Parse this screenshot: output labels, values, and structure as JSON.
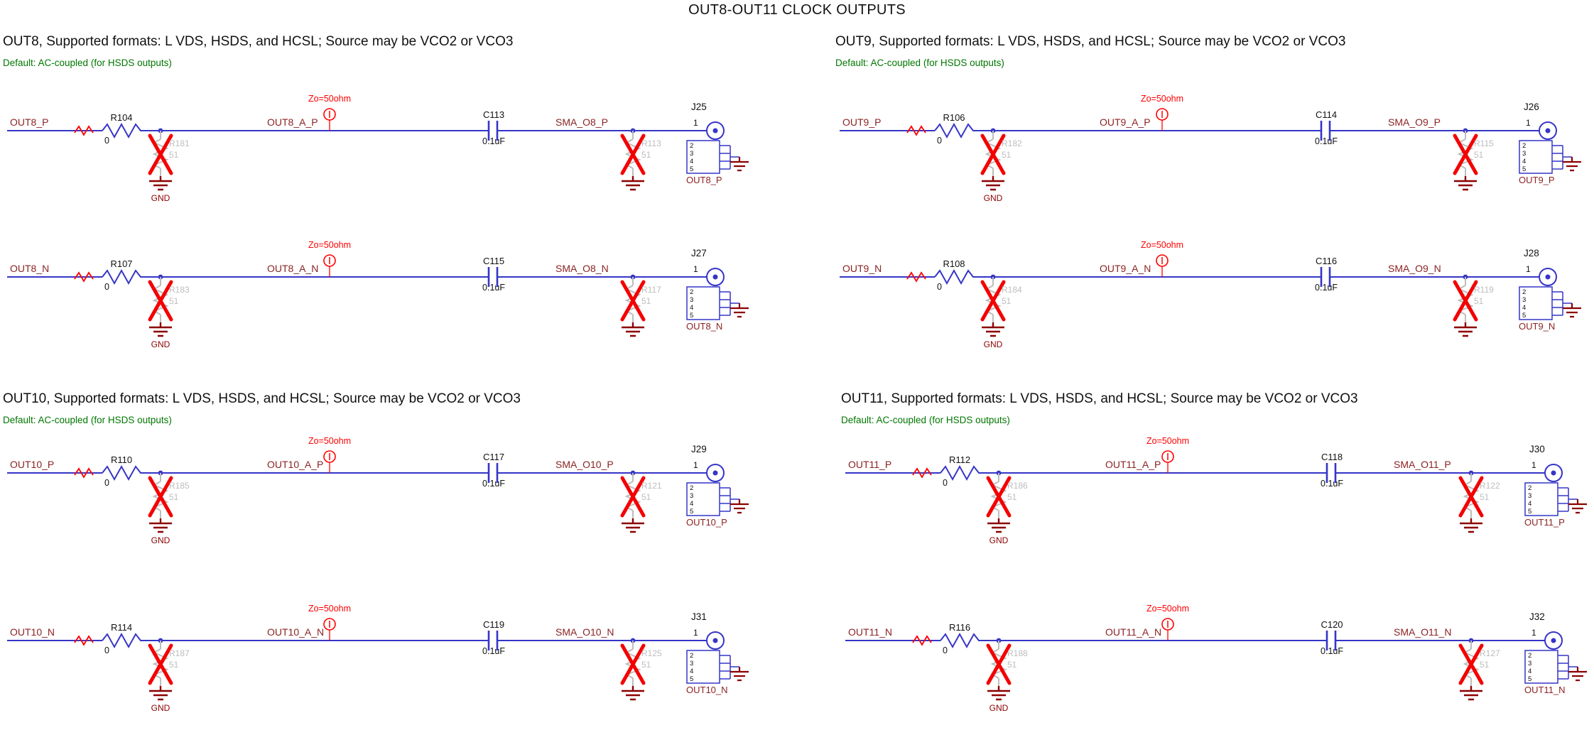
{
  "title": "OUT8-OUT11 CLOCK OUTPUTS",
  "labels": {
    "gnd": "GND",
    "zo": "Zo=50ohm"
  },
  "colors": {
    "wire": "#3535c8",
    "net_label": "#8b2323",
    "ground": "#8b0000",
    "dnp_gray": "#bdbdbd",
    "dnp_cross": "#f40000",
    "impedance": "#ff0000",
    "subtitle_green": "#007700",
    "text": "#111111"
  },
  "sections": [
    {
      "name": "OUT8",
      "title": "OUT8, Supported  formats: L VDS, HSDS, and HCSL; Source  may be VCO2 or VCO3",
      "subtitle": "Default:  AC-coupled (for HSDS outputs)",
      "channels": [
        {
          "input_net": "OUT8_P",
          "series": {
            "ref": "R104",
            "value": "0"
          },
          "shunt": {
            "ref": "R181",
            "value": "51"
          },
          "mid_net": "OUT8_A_P",
          "cap": {
            "ref": "C113",
            "value": "0.1uF"
          },
          "out_net": "SMA_O8_P",
          "sma_shunt": {
            "ref": "R113",
            "value": "51"
          },
          "connector": {
            "ref": "J25",
            "pin1": "1",
            "pins": [
              "2",
              "3",
              "4",
              "5"
            ],
            "net": "OUT8_P"
          }
        },
        {
          "input_net": "OUT8_N",
          "series": {
            "ref": "R107",
            "value": "0"
          },
          "shunt": {
            "ref": "R183",
            "value": "51"
          },
          "mid_net": "OUT8_A_N",
          "cap": {
            "ref": "C115",
            "value": "0.1uF"
          },
          "out_net": "SMA_O8_N",
          "sma_shunt": {
            "ref": "R117",
            "value": "51"
          },
          "connector": {
            "ref": "J27",
            "pin1": "1",
            "pins": [
              "2",
              "3",
              "4",
              "5"
            ],
            "net": "OUT8_N"
          }
        }
      ]
    },
    {
      "name": "OUT9",
      "title": "OUT9, Supported  formats: L VDS, HSDS, and HCSL; Source  may be VCO2 or VCO3",
      "subtitle": "Default:  AC-coupled (for HSDS outputs)",
      "channels": [
        {
          "input_net": "OUT9_P",
          "series": {
            "ref": "R106",
            "value": "0"
          },
          "shunt": {
            "ref": "R182",
            "value": "51"
          },
          "mid_net": "OUT9_A_P",
          "cap": {
            "ref": "C114",
            "value": "0.1uF"
          },
          "out_net": "SMA_O9_P",
          "sma_shunt": {
            "ref": "R115",
            "value": "51"
          },
          "connector": {
            "ref": "J26",
            "pin1": "1",
            "pins": [
              "2",
              "3",
              "4",
              "5"
            ],
            "net": "OUT9_P"
          }
        },
        {
          "input_net": "OUT9_N",
          "series": {
            "ref": "R108",
            "value": "0"
          },
          "shunt": {
            "ref": "R184",
            "value": "51"
          },
          "mid_net": "OUT9_A_N",
          "cap": {
            "ref": "C116",
            "value": "0.1uF"
          },
          "out_net": "SMA_O9_N",
          "sma_shunt": {
            "ref": "R119",
            "value": "51"
          },
          "connector": {
            "ref": "J28",
            "pin1": "1",
            "pins": [
              "2",
              "3",
              "4",
              "5"
            ],
            "net": "OUT9_N"
          }
        }
      ]
    },
    {
      "name": "OUT10",
      "title": "OUT10, Supported   formats: L VDS, HSDS, and HCSL; Source  may be VCO2 or VCO3",
      "subtitle": "Default:  AC-coupled (for HSDS outputs)",
      "channels": [
        {
          "input_net": "OUT10_P",
          "series": {
            "ref": "R110",
            "value": "0"
          },
          "shunt": {
            "ref": "R185",
            "value": "51"
          },
          "mid_net": "OUT10_A_P",
          "cap": {
            "ref": "C117",
            "value": "0.1uF"
          },
          "out_net": "SMA_O10_P",
          "sma_shunt": {
            "ref": "R121",
            "value": "51"
          },
          "connector": {
            "ref": "J29",
            "pin1": "1",
            "pins": [
              "2",
              "3",
              "4",
              "5"
            ],
            "net": "OUT10_P"
          }
        },
        {
          "input_net": "OUT10_N",
          "series": {
            "ref": "R114",
            "value": "0"
          },
          "shunt": {
            "ref": "R187",
            "value": "51"
          },
          "mid_net": "OUT10_A_N",
          "cap": {
            "ref": "C119",
            "value": "0.1uF"
          },
          "out_net": "SMA_O10_N",
          "sma_shunt": {
            "ref": "R125",
            "value": "51"
          },
          "connector": {
            "ref": "J31",
            "pin1": "1",
            "pins": [
              "2",
              "3",
              "4",
              "5"
            ],
            "net": "OUT10_N"
          }
        }
      ]
    },
    {
      "name": "OUT11",
      "title": "OUT11, Supported   formats: L VDS, HSDS, and HCSL; Source  may be VCO2 or VCO3",
      "subtitle": "Default:  AC-coupled (for HSDS outputs)",
      "channels": [
        {
          "input_net": "OUT11_P",
          "series": {
            "ref": "R112",
            "value": "0"
          },
          "shunt": {
            "ref": "R186",
            "value": "51"
          },
          "mid_net": "OUT11_A_P",
          "cap": {
            "ref": "C118",
            "value": "0.1uF"
          },
          "out_net": "SMA_O11_P",
          "sma_shunt": {
            "ref": "R122",
            "value": "51"
          },
          "connector": {
            "ref": "J30",
            "pin1": "1",
            "pins": [
              "2",
              "3",
              "4",
              "5"
            ],
            "net": "OUT11_P"
          }
        },
        {
          "input_net": "OUT11_N",
          "series": {
            "ref": "R116",
            "value": "0"
          },
          "shunt": {
            "ref": "R188",
            "value": "51"
          },
          "mid_net": "OUT11_A_N",
          "cap": {
            "ref": "C120",
            "value": "0.1uF"
          },
          "out_net": "SMA_O11_N",
          "sma_shunt": {
            "ref": "R127",
            "value": "51"
          },
          "connector": {
            "ref": "J32",
            "pin1": "1",
            "pins": [
              "2",
              "3",
              "4",
              "5"
            ],
            "net": "OUT11_N"
          }
        }
      ]
    }
  ]
}
